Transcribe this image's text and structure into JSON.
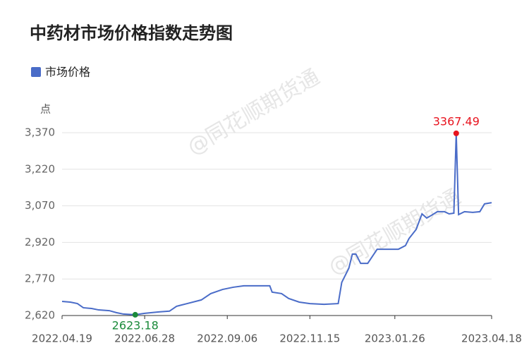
{
  "chart_data": {
    "type": "line",
    "title": "中药材市场价格指数走势图",
    "y_unit_label": "点",
    "watermark": "@同花顺期货通",
    "grid": true,
    "legend": "top-left",
    "extrema": {
      "max_color": "#e8141f",
      "min_color": "#1a8a3a"
    },
    "x": [
      "2022.04.19",
      "2022.04.26",
      "2022.05.02",
      "2022.05.07",
      "2022.05.14",
      "2022.05.20",
      "2022.05.29",
      "2022.06.04",
      "2022.06.10",
      "2022.06.20",
      "2022.06.28",
      "2022.07.10",
      "2022.07.19",
      "2022.07.25",
      "2022.08.03",
      "2022.08.15",
      "2022.08.23",
      "2022.09.02",
      "2022.09.11",
      "2022.09.20",
      "2022.10.02",
      "2022.10.12",
      "2022.10.14",
      "2022.10.22",
      "2022.10.28",
      "2022.11.06",
      "2022.11.15",
      "2022.11.27",
      "2022.12.09",
      "2022.12.12",
      "2022.12.18",
      "2022.12.21",
      "2022.12.24",
      "2022.12.28",
      "2023.01.03",
      "2023.01.11",
      "2023.01.29",
      "2023.02.04",
      "2023.02.07",
      "2023.02.13",
      "2023.02.18",
      "2023.02.22",
      "2023.02.26",
      "2023.03.03",
      "2023.03.09",
      "2023.03.13",
      "2023.03.17",
      "2023.03.19",
      "2023.03.21",
      "2023.03.26",
      "2023.04.02",
      "2023.04.08",
      "2023.04.12",
      "2023.04.18"
    ],
    "series": [
      {
        "name": "市场价格",
        "color": "#4a6cc8",
        "values": [
          2678,
          2675,
          2669,
          2652,
          2649,
          2643,
          2640,
          2632,
          2626,
          2623.18,
          2629,
          2635,
          2638,
          2658,
          2669,
          2684,
          2710,
          2727,
          2736,
          2742,
          2742,
          2742,
          2716,
          2710,
          2690,
          2675,
          2669,
          2666,
          2669,
          2756,
          2814,
          2872,
          2872,
          2834,
          2834,
          2892,
          2892,
          2907,
          2936,
          2973,
          3037,
          3020,
          3031,
          3046,
          3046,
          3037,
          3040,
          3367.49,
          3034,
          3046,
          3043,
          3046,
          3078,
          3083
        ]
      }
    ],
    "xlim": [
      "2022.04.19",
      "2023.04.18"
    ],
    "xticks": [
      "2022.04.19",
      "2022.06.28",
      "2022.09.06",
      "2022.11.15",
      "2023.01.26",
      "2023.04.18"
    ],
    "ylim": [
      2620,
      3370
    ],
    "yticks": [
      {
        "value": 2620,
        "label": "2,620"
      },
      {
        "value": 2770,
        "label": "2,770"
      },
      {
        "value": 2920,
        "label": "2,920"
      },
      {
        "value": 3070,
        "label": "3,070"
      },
      {
        "value": 3220,
        "label": "3,220"
      },
      {
        "value": 3370,
        "label": "3,370"
      }
    ]
  }
}
